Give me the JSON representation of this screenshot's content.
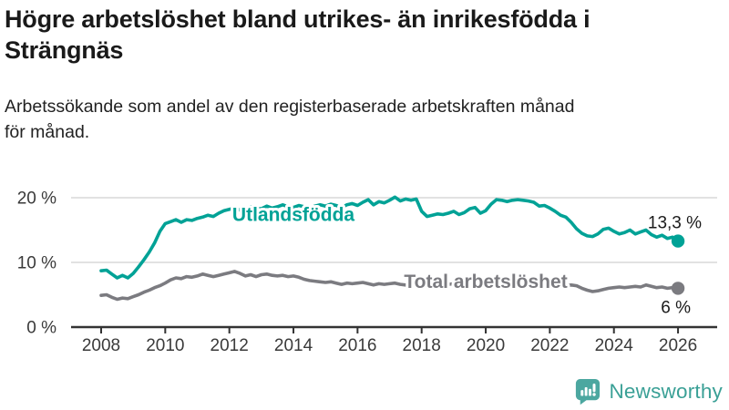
{
  "header": {
    "title_lines": [
      "Högre arbetslöshet bland utrikes- än inrikesfödda i",
      "Strängnäs"
    ],
    "subtitle_lines": [
      "Arbetssökande som andel av den registerbaserade arbetskraften månad",
      "för månad."
    ]
  },
  "footer": {
    "brand": "Newsworthy",
    "logo_icon": "bar-chart-speech-bubble-icon",
    "brand_color": "#3aa096",
    "icon_color": "#4ca7a0"
  },
  "colors": {
    "foreign_born_line": "#00a296",
    "total_line": "#7b7b80",
    "gridline": "#d9d9d9",
    "axis": "#333333",
    "title_text": "#1a1a1a"
  },
  "chart_data": {
    "type": "line",
    "title": "Högre arbetslöshet bland utrikes- än inrikesfödda i Strängnäs",
    "subtitle": "Arbetssökande som andel av den registerbaserade arbetskraften månad för månad.",
    "unit": "%",
    "x_start": 2008.0,
    "x_step_months": 2,
    "x_ticks": [
      2008,
      2010,
      2012,
      2014,
      2016,
      2018,
      2020,
      2022,
      2024,
      2026
    ],
    "y_ticks": [
      {
        "value": 0,
        "label": "0 %"
      },
      {
        "value": 10,
        "label": "10 %"
      },
      {
        "value": 20,
        "label": "20 %"
      }
    ],
    "ylim": [
      0,
      21
    ],
    "grid": "horizontal-only",
    "legend": "inline-labels",
    "series": [
      {
        "name": "Utlandsfödda",
        "color": "#00a296",
        "end_label": "13,3 %",
        "end_value": 13.3,
        "label_pos": {
          "year": 2014.0,
          "value": 16.4
        },
        "values": [
          8.7,
          8.8,
          8.2,
          7.6,
          8.0,
          7.6,
          8.3,
          9.3,
          10.4,
          11.6,
          13.0,
          14.8,
          16.0,
          16.3,
          16.6,
          16.2,
          16.6,
          16.5,
          16.8,
          17.0,
          17.3,
          17.1,
          17.6,
          18.0,
          18.2,
          18.4,
          18.1,
          18.3,
          18.6,
          18.4,
          18.3,
          18.7,
          18.4,
          18.6,
          18.9,
          18.6,
          18.5,
          18.8,
          18.6,
          18.4,
          18.7,
          18.9,
          18.7,
          19.0,
          18.8,
          18.5,
          18.9,
          19.1,
          18.8,
          19.3,
          19.7,
          18.9,
          19.4,
          19.2,
          19.6,
          20.1,
          19.5,
          19.8,
          19.6,
          19.8,
          17.9,
          17.1,
          17.3,
          17.5,
          17.4,
          17.6,
          17.9,
          17.4,
          17.7,
          18.3,
          18.5,
          17.6,
          18.0,
          19.0,
          19.7,
          19.6,
          19.4,
          19.6,
          19.7,
          19.6,
          19.5,
          19.3,
          18.7,
          18.8,
          18.4,
          17.9,
          17.3,
          17.0,
          16.2,
          15.2,
          14.5,
          14.1,
          14.0,
          14.4,
          15.1,
          15.3,
          14.8,
          14.4,
          14.6,
          15.0,
          14.4,
          14.7,
          15.0,
          14.3,
          13.9,
          14.2,
          13.7,
          13.9,
          13.3
        ]
      },
      {
        "name": "Total arbetslöshet",
        "color": "#7b7b80",
        "end_label": "6 %",
        "end_value": 6.0,
        "label_pos": {
          "year": 2020.0,
          "value": 6.05
        },
        "values": [
          4.9,
          5.0,
          4.6,
          4.3,
          4.5,
          4.4,
          4.7,
          5.0,
          5.4,
          5.7,
          6.1,
          6.4,
          6.8,
          7.3,
          7.6,
          7.5,
          7.8,
          7.7,
          7.9,
          8.2,
          8.0,
          7.8,
          8.0,
          8.2,
          8.4,
          8.6,
          8.3,
          7.9,
          8.1,
          7.8,
          8.1,
          8.2,
          8.0,
          7.9,
          8.0,
          7.8,
          7.9,
          7.7,
          7.4,
          7.2,
          7.1,
          7.0,
          6.9,
          7.0,
          6.8,
          6.6,
          6.8,
          6.7,
          6.8,
          6.9,
          6.7,
          6.5,
          6.7,
          6.6,
          6.7,
          6.8,
          6.6,
          6.5,
          6.7,
          6.6,
          6.7,
          6.8,
          6.6,
          6.5,
          6.6,
          6.6,
          6.7,
          6.6,
          6.5,
          6.6,
          6.7,
          6.6,
          6.7,
          6.9,
          7.1,
          7.0,
          6.9,
          6.8,
          6.9,
          6.8,
          6.7,
          6.6,
          6.6,
          6.5,
          6.6,
          6.5,
          6.5,
          6.4,
          6.5,
          6.4,
          6.0,
          5.7,
          5.5,
          5.6,
          5.8,
          6.0,
          6.1,
          6.2,
          6.1,
          6.2,
          6.3,
          6.2,
          6.5,
          6.3,
          6.1,
          6.2,
          6.0,
          6.1,
          6.0
        ]
      }
    ]
  }
}
